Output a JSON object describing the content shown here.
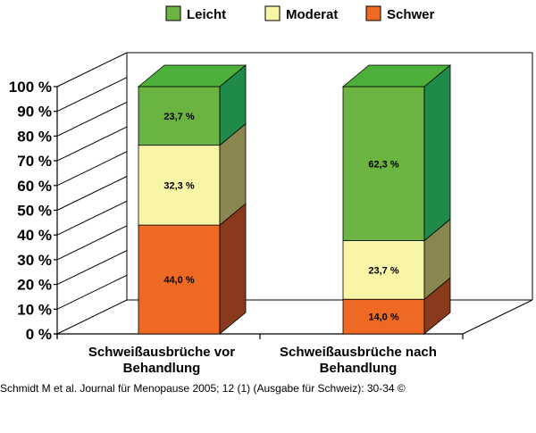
{
  "chart_data": {
    "type": "bar",
    "stacked": true,
    "three_d": true,
    "categories": [
      "Schweißausbrüche vor Behandlung",
      "Schweißausbrüche nach Behandlung"
    ],
    "category_lines": [
      [
        "Schweißausbrüche vor",
        "Behandlung"
      ],
      [
        "Schweißausbrüche nach",
        "Behandlung"
      ]
    ],
    "series": [
      {
        "name": "Schwer",
        "values": [
          44.0,
          14.0
        ],
        "labels": [
          "44,0 %",
          "14,0 %"
        ]
      },
      {
        "name": "Moderat",
        "values": [
          32.3,
          23.7
        ],
        "labels": [
          "32,3 %",
          "23,7 %"
        ]
      },
      {
        "name": "Leicht",
        "values": [
          23.7,
          62.3
        ],
        "labels": [
          "23,7 %",
          "62,3 %"
        ]
      }
    ],
    "legend_order": [
      "Leicht",
      "Moderat",
      "Schwer"
    ],
    "legend_position": "top",
    "ylim": [
      0,
      100
    ],
    "y_ticks": [
      "0 %",
      "10 %",
      "20 %",
      "30 %",
      "40 %",
      "50 %",
      "60 %",
      "70 %",
      "80 %",
      "90 %",
      "100 %"
    ],
    "grid": false
  },
  "colors": {
    "Schwer": {
      "front": "#ee6a24",
      "side": "#8a3a1c",
      "top": "#ee6a24"
    },
    "Moderat": {
      "front": "#f8f5a6",
      "side": "#8a8650",
      "top": "#f8f5a6"
    },
    "Leicht": {
      "front": "#6cb441",
      "side": "#1f8a4a",
      "top": "#4caf3a"
    },
    "axis": "#000000"
  },
  "source_text": "Schmidt M et al. Journal für Menopause 2005; 12 (1) (Ausgabe für Schweiz): 30-34 ©"
}
